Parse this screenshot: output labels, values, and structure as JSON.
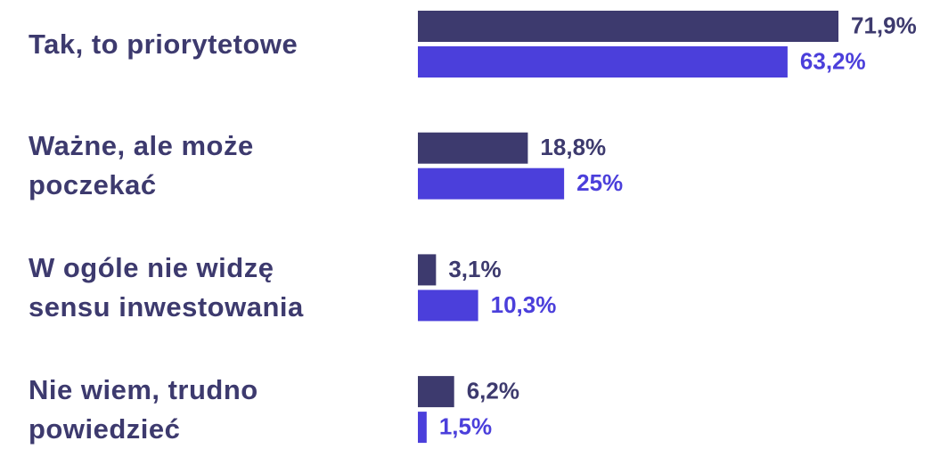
{
  "chart_data": {
    "type": "bar",
    "categories": [
      "Tak, to priorytetowe",
      "Ważne, ale może poczekać",
      "W ogóle nie widzę sensu inwestowania",
      "Nie wiem, trudno powiedzieć"
    ],
    "series": [
      {
        "color": "#3d3a6e",
        "values": [
          71.9,
          18.8,
          3.1,
          6.2
        ],
        "value_labels": [
          "71,9%",
          "18,8%",
          "3,1%",
          "6,2%"
        ]
      },
      {
        "color": "#4b3fdb",
        "values": [
          63.2,
          25,
          10.3,
          1.5
        ],
        "value_labels": [
          "63,2%",
          "25%",
          "10,3%",
          "1,5%"
        ]
      }
    ]
  }
}
